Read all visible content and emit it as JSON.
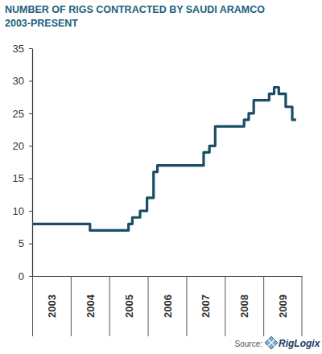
{
  "chart_data": {
    "type": "line",
    "title": "NUMBER OF RIGS CONTRACTED BY SAUDI ARAMCO",
    "subtitle": "2003-PRESENT",
    "annotations": [
      "Source:",
      "RigLogix"
    ],
    "x": [
      2003.0,
      2004.5,
      2005.5,
      2005.6,
      2005.8,
      2005.98,
      2006.15,
      2006.25,
      2007.45,
      2007.6,
      2007.75,
      2008.5,
      2008.62,
      2008.75,
      2009.15,
      2009.28,
      2009.4,
      2009.58,
      2009.75,
      2009.85
    ],
    "values": [
      8,
      7,
      8,
      9,
      10,
      12,
      16,
      17,
      19,
      20,
      23,
      24,
      25,
      27,
      28,
      29,
      28,
      26,
      24,
      24
    ],
    "color": "#1b4d66",
    "line_style": "step",
    "xlim": [
      2003,
      2010
    ],
    "xticks": [
      2003,
      2004,
      2005,
      2006,
      2007,
      2008,
      2009
    ],
    "ylim": [
      0,
      35
    ],
    "yticks": [
      0,
      5,
      10,
      15,
      20,
      25,
      30,
      35
    ],
    "grid": false
  }
}
